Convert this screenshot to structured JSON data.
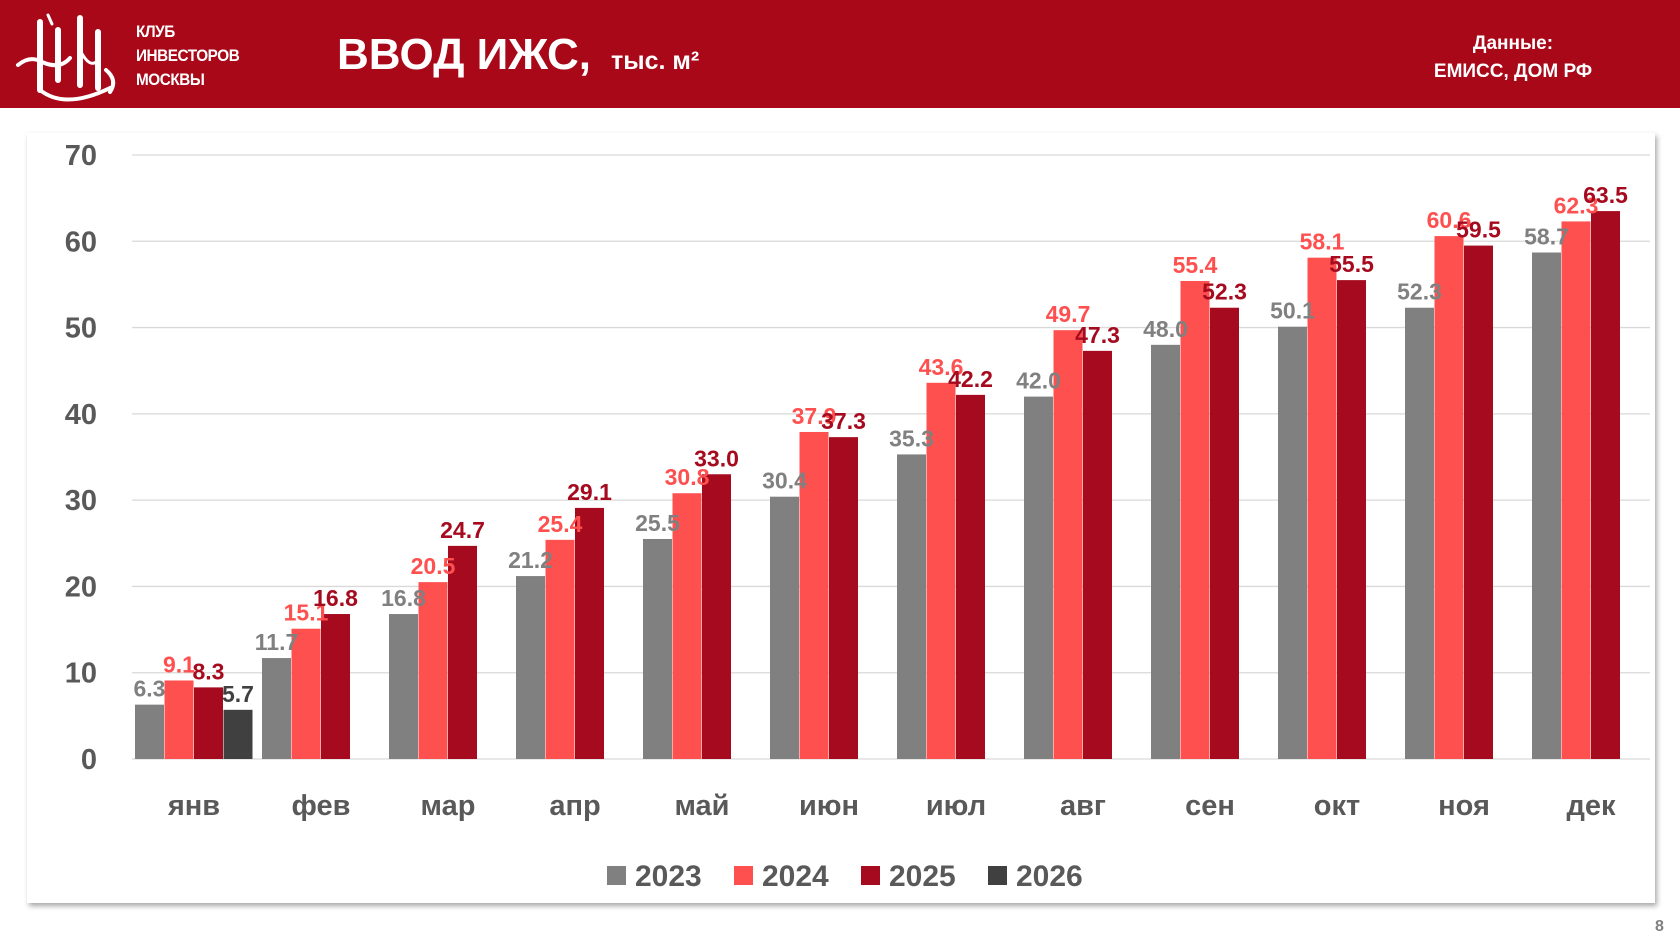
{
  "header": {
    "club_lines": [
      "КЛУБ",
      "ИНВЕСТОРОВ",
      "МОСКВЫ"
    ],
    "title": "ВВОД ИЖС,",
    "unit": "тыс. м²",
    "source_label": "Данные:",
    "source_value": "ЕМИСС, ДОМ РФ",
    "background_color": "#a80818"
  },
  "page_number": "8",
  "chart_data": {
    "type": "bar",
    "categories": [
      "янв",
      "фев",
      "мар",
      "апр",
      "май",
      "июн",
      "июл",
      "авг",
      "сен",
      "окт",
      "ноя",
      "дек"
    ],
    "ylim": [
      0,
      70
    ],
    "yticks": [
      0,
      10,
      20,
      30,
      40,
      50,
      60,
      70
    ],
    "grid": true,
    "legend_position": "bottom",
    "series": [
      {
        "name": "2023",
        "color": "#808080",
        "label_color": "#808080",
        "values": [
          6.3,
          11.7,
          16.8,
          21.2,
          25.5,
          30.4,
          35.3,
          42.0,
          48.0,
          50.1,
          52.3,
          58.7
        ]
      },
      {
        "name": "2024",
        "color": "#ff5050",
        "label_color": "#ff5050",
        "values": [
          9.1,
          15.1,
          20.5,
          25.4,
          30.8,
          37.9,
          43.6,
          49.7,
          55.4,
          58.1,
          60.6,
          62.3
        ]
      },
      {
        "name": "2025",
        "color": "#a50a1e",
        "label_color": "#a50a1e",
        "values": [
          8.3,
          16.8,
          24.7,
          29.1,
          33.0,
          37.3,
          42.2,
          47.3,
          52.3,
          55.5,
          59.5,
          63.5
        ]
      },
      {
        "name": "2026",
        "color": "#404040",
        "label_color": "#404040",
        "values": [
          5.7,
          null,
          null,
          null,
          null,
          null,
          null,
          null,
          null,
          null,
          null,
          null
        ]
      }
    ]
  }
}
